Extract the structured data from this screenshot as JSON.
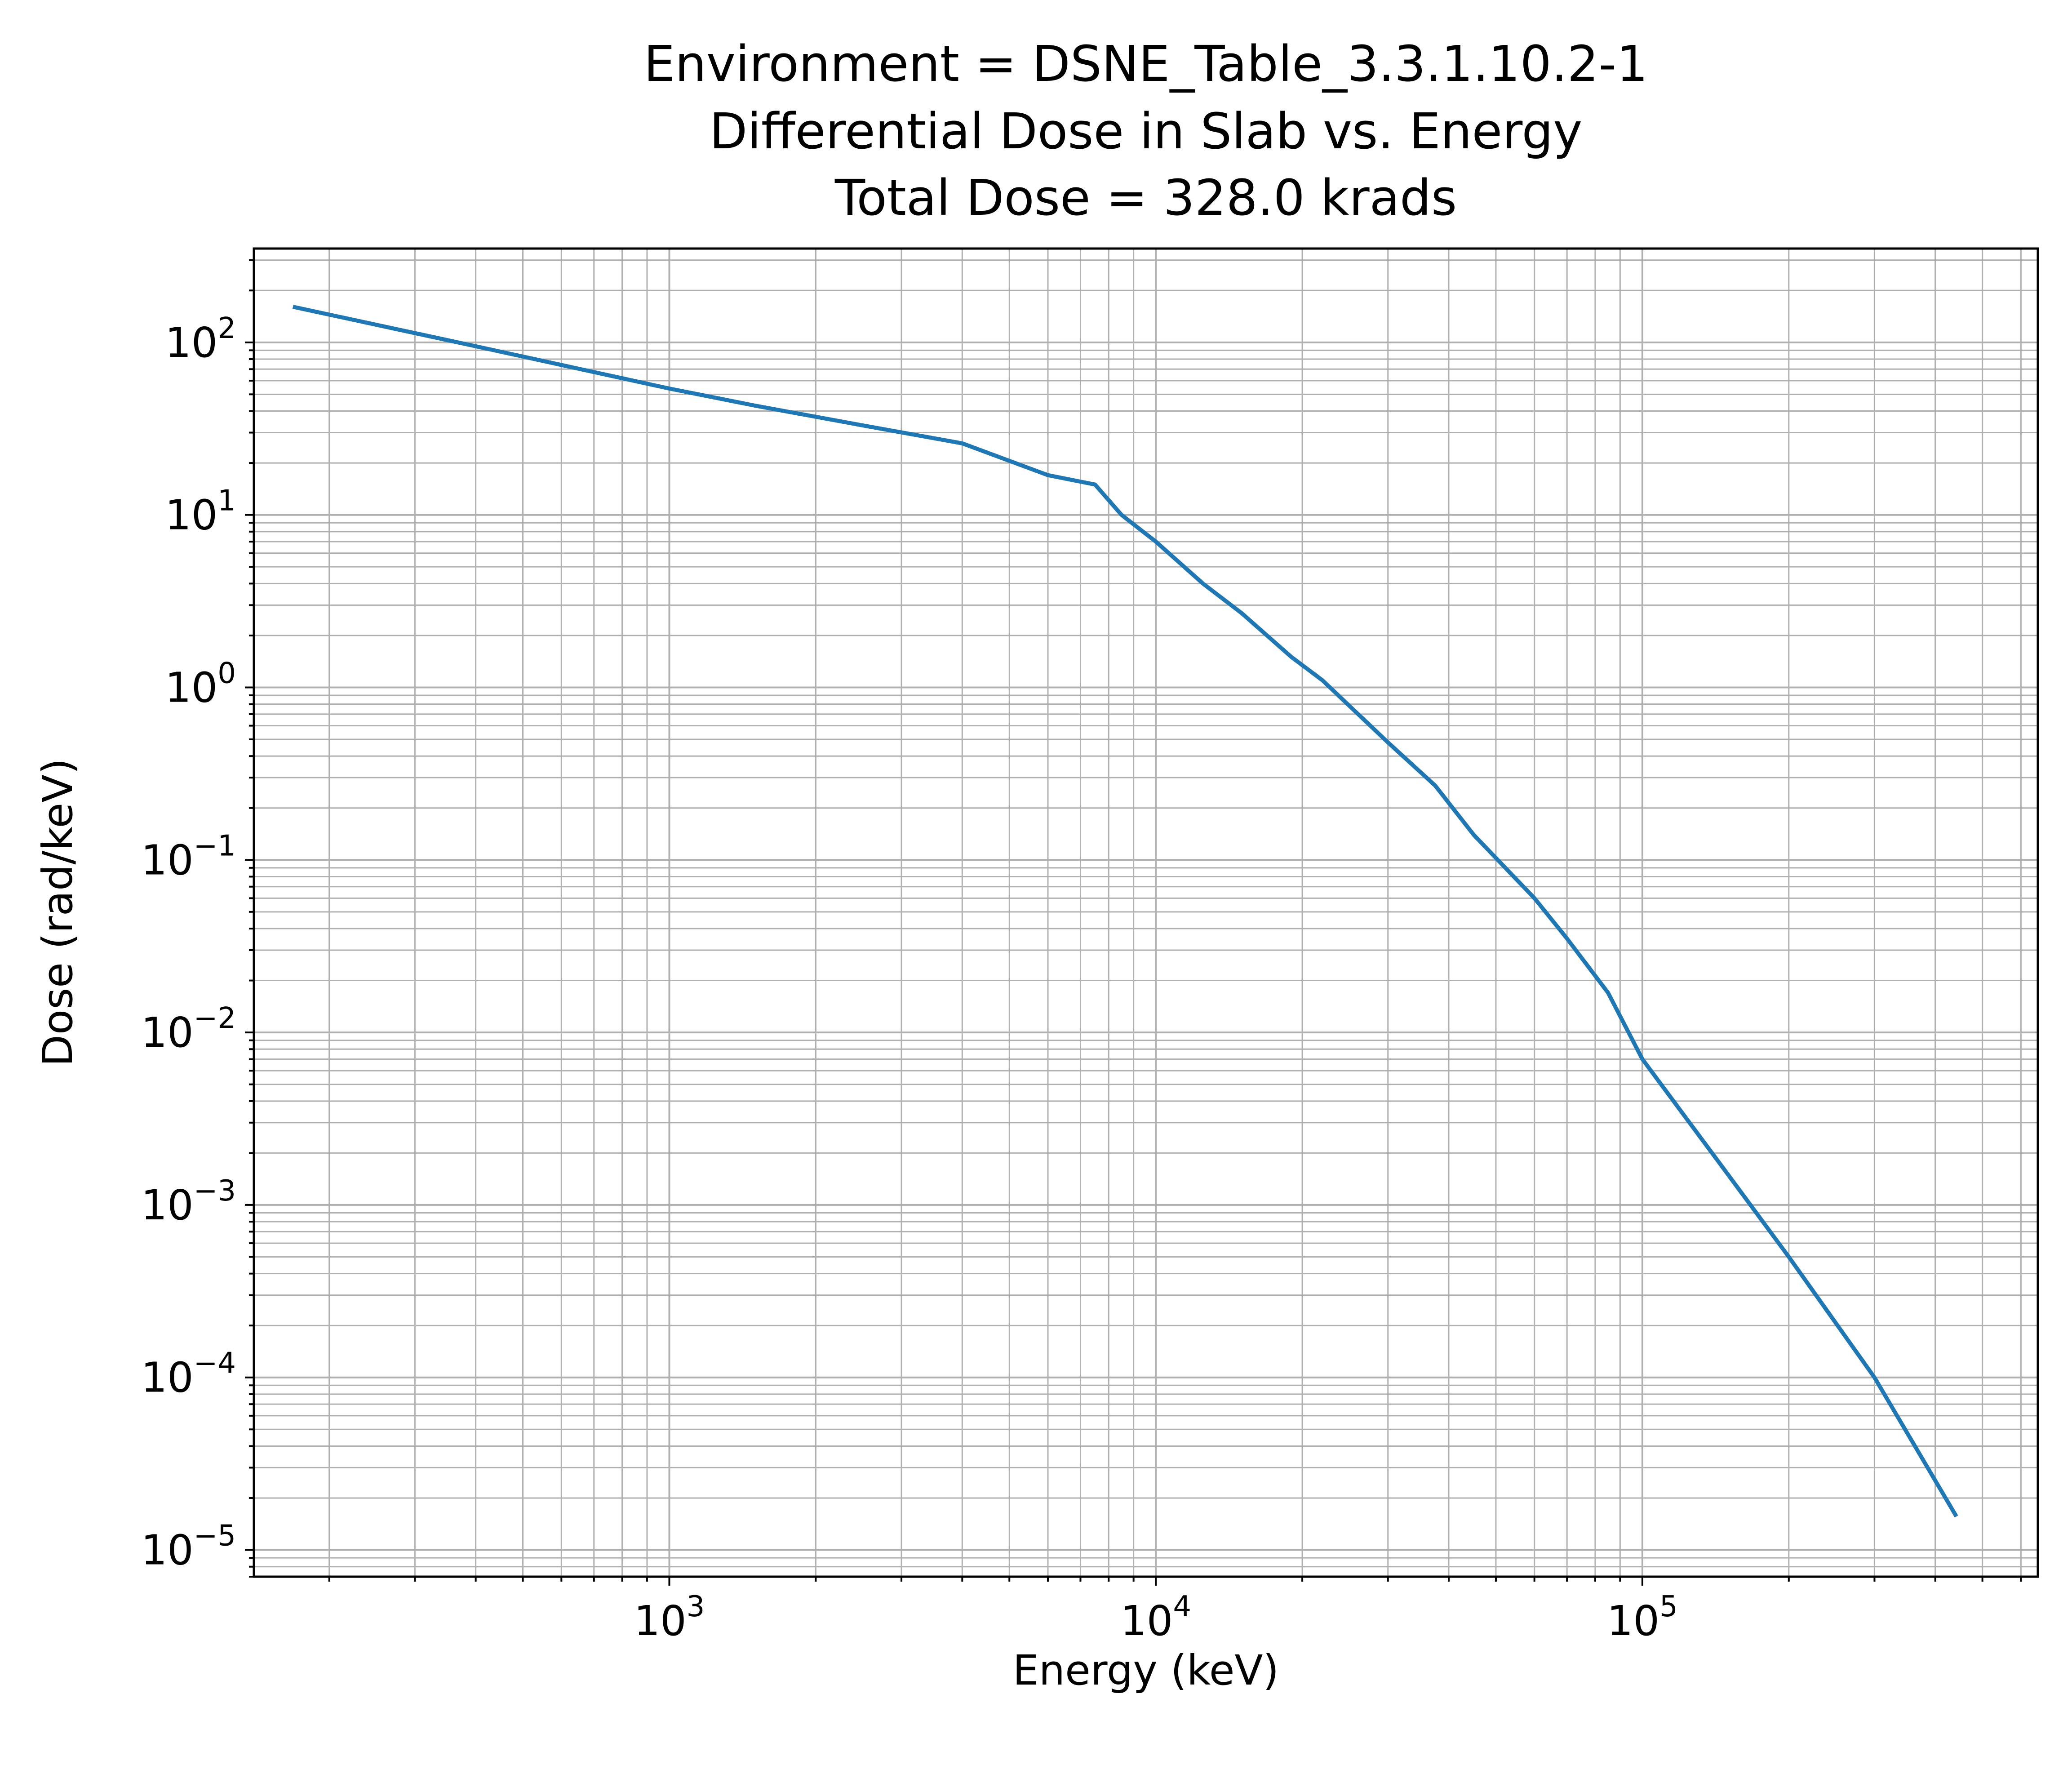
{
  "chart_data": {
    "type": "line",
    "title": [
      "Environment = DSNE_Table_3.3.1.10.2-1",
      "Differential Dose in Slab vs. Energy",
      "Total Dose = 328.0 krads"
    ],
    "xlabel": "Energy (keV)",
    "ylabel": "Dose (rad/keV)",
    "xscale": "log",
    "yscale": "log",
    "xlim": [
      140,
      650000
    ],
    "ylim": [
      7e-06,
      350
    ],
    "grid": true,
    "grid_which": "both",
    "legend": false,
    "x_ticks": [
      {
        "value": 1000,
        "base": "10",
        "exp": "3"
      },
      {
        "value": 10000,
        "base": "10",
        "exp": "4"
      },
      {
        "value": 100000,
        "base": "10",
        "exp": "5"
      }
    ],
    "y_ticks": [
      {
        "value": 1e-05,
        "base": "10",
        "exp": "−5"
      },
      {
        "value": 0.0001,
        "base": "10",
        "exp": "−4"
      },
      {
        "value": 0.001,
        "base": "10",
        "exp": "−3"
      },
      {
        "value": 0.01,
        "base": "10",
        "exp": "−2"
      },
      {
        "value": 0.1,
        "base": "10",
        "exp": "−1"
      },
      {
        "value": 1,
        "base": "10",
        "exp": "0"
      },
      {
        "value": 10,
        "base": "10",
        "exp": "1"
      },
      {
        "value": 100,
        "base": "10",
        "exp": "2"
      }
    ],
    "series": [
      {
        "color": "#1f77b4",
        "x": [
          170,
          400,
          1000,
          1500,
          2500,
          4000,
          6000,
          7500,
          8500,
          10000,
          12500,
          15000,
          19000,
          22000,
          30000,
          37500,
          45000,
          60000,
          70000,
          85000,
          100000,
          125000,
          150000,
          200000,
          300000,
          440000
        ],
        "y": [
          160,
          95,
          54,
          43,
          33,
          26,
          17,
          15,
          10,
          7,
          4,
          2.7,
          1.5,
          1.1,
          0.48,
          0.27,
          0.14,
          0.06,
          0.035,
          0.017,
          0.007,
          0.003,
          0.0015,
          0.0005,
          0.0001,
          1.6e-05
        ]
      }
    ]
  }
}
